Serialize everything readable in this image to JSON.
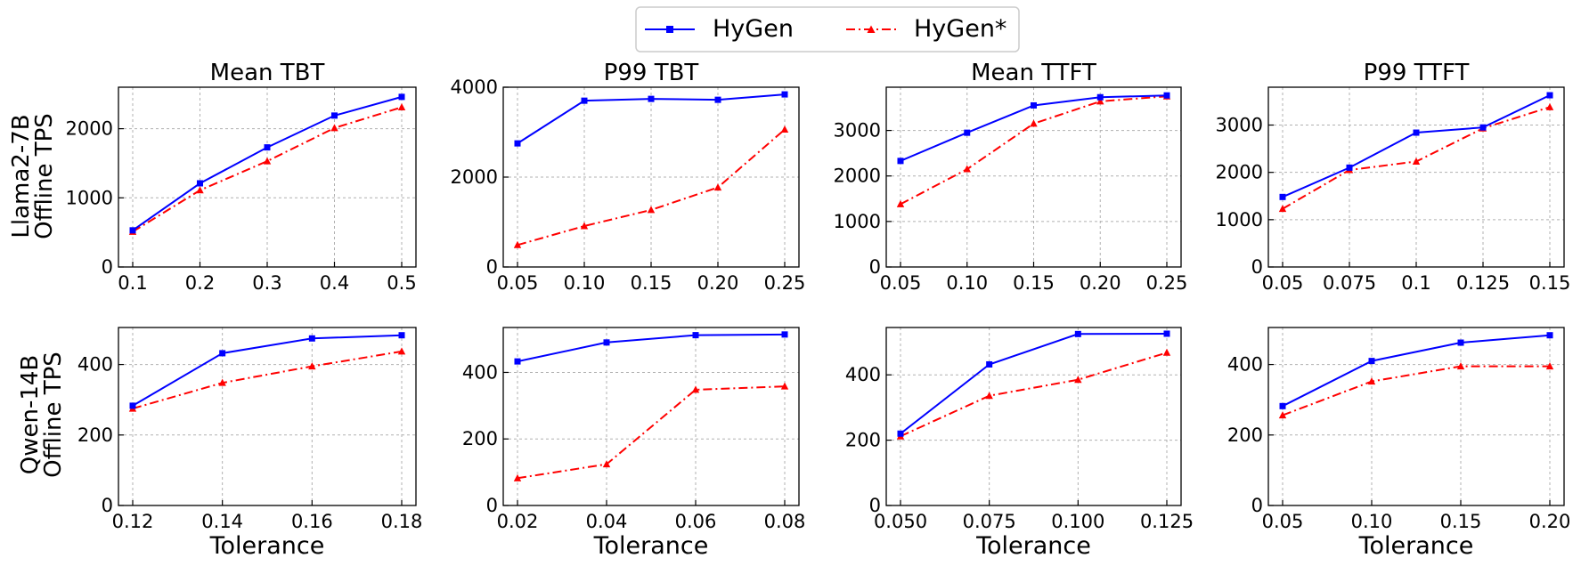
{
  "legend": {
    "position": "top-center",
    "entries": [
      {
        "label": "HyGen",
        "color": "#0000ff",
        "marker": "square",
        "style": "solid"
      },
      {
        "label": "HyGen*",
        "color": "#ff0000",
        "marker": "triangle",
        "style": "dashdot"
      }
    ]
  },
  "row_labels": [
    {
      "line1": "Llama2-7B",
      "line2": "Offline TPS"
    },
    {
      "line1": "Qwen-14B",
      "line2": "Offline TPS"
    }
  ],
  "column_titles": [
    "Mean TBT",
    "P99 TBT",
    "Mean TTFT",
    "P99 TTFT"
  ],
  "x_axis_label": "Tolerance",
  "chart_data": [
    {
      "type": "line",
      "title": "Mean TBT",
      "ylabel": "Llama2-7B Offline TPS",
      "xlabel": "",
      "x": [
        0.1,
        0.2,
        0.3,
        0.4,
        0.5
      ],
      "xticks": [
        "0.1",
        "0.2",
        "0.3",
        "0.4",
        "0.5"
      ],
      "ylim": [
        0,
        2600
      ],
      "yticks": [
        0,
        1000,
        2000
      ],
      "ytick_labels": [
        "0",
        "1000",
        "2000"
      ],
      "series": [
        {
          "name": "HyGen",
          "values": [
            530,
            1210,
            1730,
            2190,
            2460
          ]
        },
        {
          "name": "HyGen*",
          "values": [
            510,
            1110,
            1530,
            2010,
            2310
          ]
        }
      ]
    },
    {
      "type": "line",
      "title": "P99 TBT",
      "ylabel": "",
      "xlabel": "",
      "x": [
        0.05,
        0.1,
        0.15,
        0.2,
        0.25
      ],
      "xticks": [
        "0.05",
        "0.10",
        "0.15",
        "0.20",
        "0.25"
      ],
      "ylim": [
        0,
        4000
      ],
      "yticks": [
        0,
        2000,
        4000
      ],
      "ytick_labels": [
        "0",
        "2000",
        "4000"
      ],
      "series": [
        {
          "name": "HyGen",
          "values": [
            2750,
            3700,
            3740,
            3720,
            3840
          ]
        },
        {
          "name": "HyGen*",
          "values": [
            490,
            910,
            1270,
            1770,
            3060
          ]
        }
      ]
    },
    {
      "type": "line",
      "title": "Mean TTFT",
      "ylabel": "",
      "xlabel": "",
      "x": [
        0.05,
        0.1,
        0.15,
        0.2,
        0.25
      ],
      "xticks": [
        "0.05",
        "0.10",
        "0.15",
        "0.20",
        "0.25"
      ],
      "ylim": [
        0,
        3950
      ],
      "yticks": [
        0,
        1000,
        2000,
        3000
      ],
      "ytick_labels": [
        "0",
        "1000",
        "2000",
        "3000"
      ],
      "series": [
        {
          "name": "HyGen",
          "values": [
            2330,
            2950,
            3550,
            3730,
            3770
          ]
        },
        {
          "name": "HyGen*",
          "values": [
            1380,
            2150,
            3150,
            3640,
            3750
          ]
        }
      ]
    },
    {
      "type": "line",
      "title": "P99 TTFT",
      "ylabel": "",
      "xlabel": "",
      "x": [
        0.05,
        0.075,
        0.1,
        0.125,
        0.15
      ],
      "xticks": [
        "0.05",
        "0.075",
        "0.1",
        "0.125",
        "0.15"
      ],
      "ylim": [
        0,
        3800
      ],
      "yticks": [
        0,
        1000,
        2000,
        3000
      ],
      "ytick_labels": [
        "0",
        "1000",
        "2000",
        "3000"
      ],
      "series": [
        {
          "name": "HyGen",
          "values": [
            1480,
            2100,
            2840,
            2950,
            3630
          ]
        },
        {
          "name": "HyGen*",
          "values": [
            1230,
            2050,
            2230,
            2930,
            3380
          ]
        }
      ]
    },
    {
      "type": "line",
      "title": "",
      "ylabel": "Qwen-14B Offline TPS",
      "xlabel": "Tolerance",
      "x": [
        0.12,
        0.14,
        0.16,
        0.18
      ],
      "xticks": [
        "0.12",
        "0.14",
        "0.16",
        "0.18"
      ],
      "ylim": [
        0,
        505
      ],
      "yticks": [
        0,
        200,
        400
      ],
      "ytick_labels": [
        "0",
        "200",
        "400"
      ],
      "series": [
        {
          "name": "HyGen",
          "values": [
            283,
            432,
            474,
            483
          ]
        },
        {
          "name": "HyGen*",
          "values": [
            275,
            348,
            395,
            437
          ]
        }
      ]
    },
    {
      "type": "line",
      "title": "",
      "ylabel": "",
      "xlabel": "Tolerance",
      "x": [
        0.02,
        0.04,
        0.06,
        0.08
      ],
      "xticks": [
        "0.02",
        "0.04",
        "0.06",
        "0.08"
      ],
      "ylim": [
        0,
        535
      ],
      "yticks": [
        0,
        200,
        400
      ],
      "ytick_labels": [
        "0",
        "200",
        "400"
      ],
      "series": [
        {
          "name": "HyGen",
          "values": [
            433,
            490,
            512,
            514
          ]
        },
        {
          "name": "HyGen*",
          "values": [
            82,
            124,
            348,
            358
          ]
        }
      ]
    },
    {
      "type": "line",
      "title": "",
      "ylabel": "",
      "xlabel": "Tolerance",
      "x": [
        0.05,
        0.075,
        0.1,
        0.125
      ],
      "xticks": [
        "0.050",
        "0.075",
        "0.100",
        "0.125"
      ],
      "ylim": [
        0,
        545
      ],
      "yticks": [
        0,
        200,
        400
      ],
      "ytick_labels": [
        "0",
        "200",
        "400"
      ],
      "series": [
        {
          "name": "HyGen",
          "values": [
            220,
            432,
            525,
            526
          ]
        },
        {
          "name": "HyGen*",
          "values": [
            212,
            336,
            385,
            468
          ]
        }
      ]
    },
    {
      "type": "line",
      "title": "",
      "ylabel": "",
      "xlabel": "Tolerance",
      "x": [
        0.05,
        0.1,
        0.15,
        0.2
      ],
      "xticks": [
        "0.05",
        "0.10",
        "0.15",
        "0.20"
      ],
      "ylim": [
        0,
        505
      ],
      "yticks": [
        0,
        200,
        400
      ],
      "ytick_labels": [
        "0",
        "200",
        "400"
      ],
      "series": [
        {
          "name": "HyGen",
          "values": [
            282,
            410,
            462,
            483
          ]
        },
        {
          "name": "HyGen*",
          "values": [
            256,
            352,
            395,
            395
          ]
        }
      ]
    }
  ]
}
